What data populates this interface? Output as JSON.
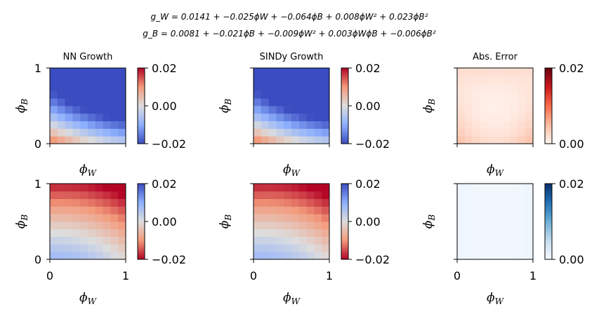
{
  "equations": {
    "line1": "g_W = 0.0141 + −0.025ϕW + −0.064ϕB + 0.008ϕW² + 0.023ϕB²",
    "line2": "g_B = 0.0081 + −0.021ϕB + −0.009ϕW² + 0.003ϕWϕB + −0.006ϕB²"
  },
  "chart_data": [
    {
      "type": "heatmap",
      "title": "NN Growth",
      "xlabel": "ϕ_W",
      "ylabel": "ϕ_B",
      "x_range": [
        0,
        1
      ],
      "y_range": [
        0,
        1
      ],
      "field": "gW",
      "grid": [
        10,
        10
      ],
      "colormap": "coolwarm",
      "clim": [
        -0.02,
        0.02
      ],
      "colorbar_ticks": [
        "0.02",
        "0.00",
        "−0.02"
      ],
      "xticks": [],
      "yticks": [
        "1",
        "0"
      ]
    },
    {
      "type": "heatmap",
      "title": "SINDy Growth",
      "xlabel": "ϕ_W",
      "ylabel": "ϕ_B",
      "x_range": [
        0,
        1
      ],
      "y_range": [
        0,
        1
      ],
      "field": "gW",
      "grid": [
        10,
        10
      ],
      "colormap": "coolwarm",
      "clim": [
        -0.02,
        0.02
      ],
      "colorbar_ticks": [
        "0.02",
        "0.00",
        "−0.02"
      ],
      "xticks": [],
      "yticks": []
    },
    {
      "type": "heatmap",
      "title": "Abs. Error",
      "xlabel": "ϕ_W",
      "ylabel": "ϕ_B",
      "x_range": [
        0,
        1
      ],
      "y_range": [
        0,
        1
      ],
      "field": "errW",
      "grid": [
        10,
        10
      ],
      "colormap": "Reds",
      "clim": [
        0,
        0.02
      ],
      "colorbar_ticks": [
        "0.02",
        "0.00"
      ],
      "xticks": [],
      "yticks": []
    },
    {
      "type": "heatmap",
      "title": "",
      "xlabel": "ϕ_W",
      "ylabel": "ϕ_B",
      "x_range": [
        0,
        1
      ],
      "y_range": [
        0,
        1
      ],
      "field": "gB",
      "grid": [
        10,
        10
      ],
      "colormap": "coolwarm_r",
      "clim": [
        -0.02,
        0.02
      ],
      "colorbar_ticks": [
        "0.02",
        "0.00",
        "−0.02"
      ],
      "xticks": [
        "0",
        "1"
      ],
      "yticks": [
        "1",
        "0"
      ]
    },
    {
      "type": "heatmap",
      "title": "",
      "xlabel": "ϕ_W",
      "ylabel": "ϕ_B",
      "x_range": [
        0,
        1
      ],
      "y_range": [
        0,
        1
      ],
      "field": "gB",
      "grid": [
        10,
        10
      ],
      "colormap": "coolwarm_r",
      "clim": [
        -0.02,
        0.02
      ],
      "colorbar_ticks": [
        "0.02",
        "0.00",
        "−0.02"
      ],
      "xticks": [
        "0",
        "1"
      ],
      "yticks": []
    },
    {
      "type": "heatmap",
      "title": "",
      "xlabel": "ϕ_W",
      "ylabel": "ϕ_B",
      "x_range": [
        0,
        1
      ],
      "y_range": [
        0,
        1
      ],
      "field": "errB",
      "grid": [
        10,
        10
      ],
      "colormap": "Blues",
      "clim": [
        0,
        0.02
      ],
      "colorbar_ticks": [
        "0.02",
        "0.00"
      ],
      "xticks": [
        "0",
        "1"
      ],
      "yticks": []
    }
  ]
}
